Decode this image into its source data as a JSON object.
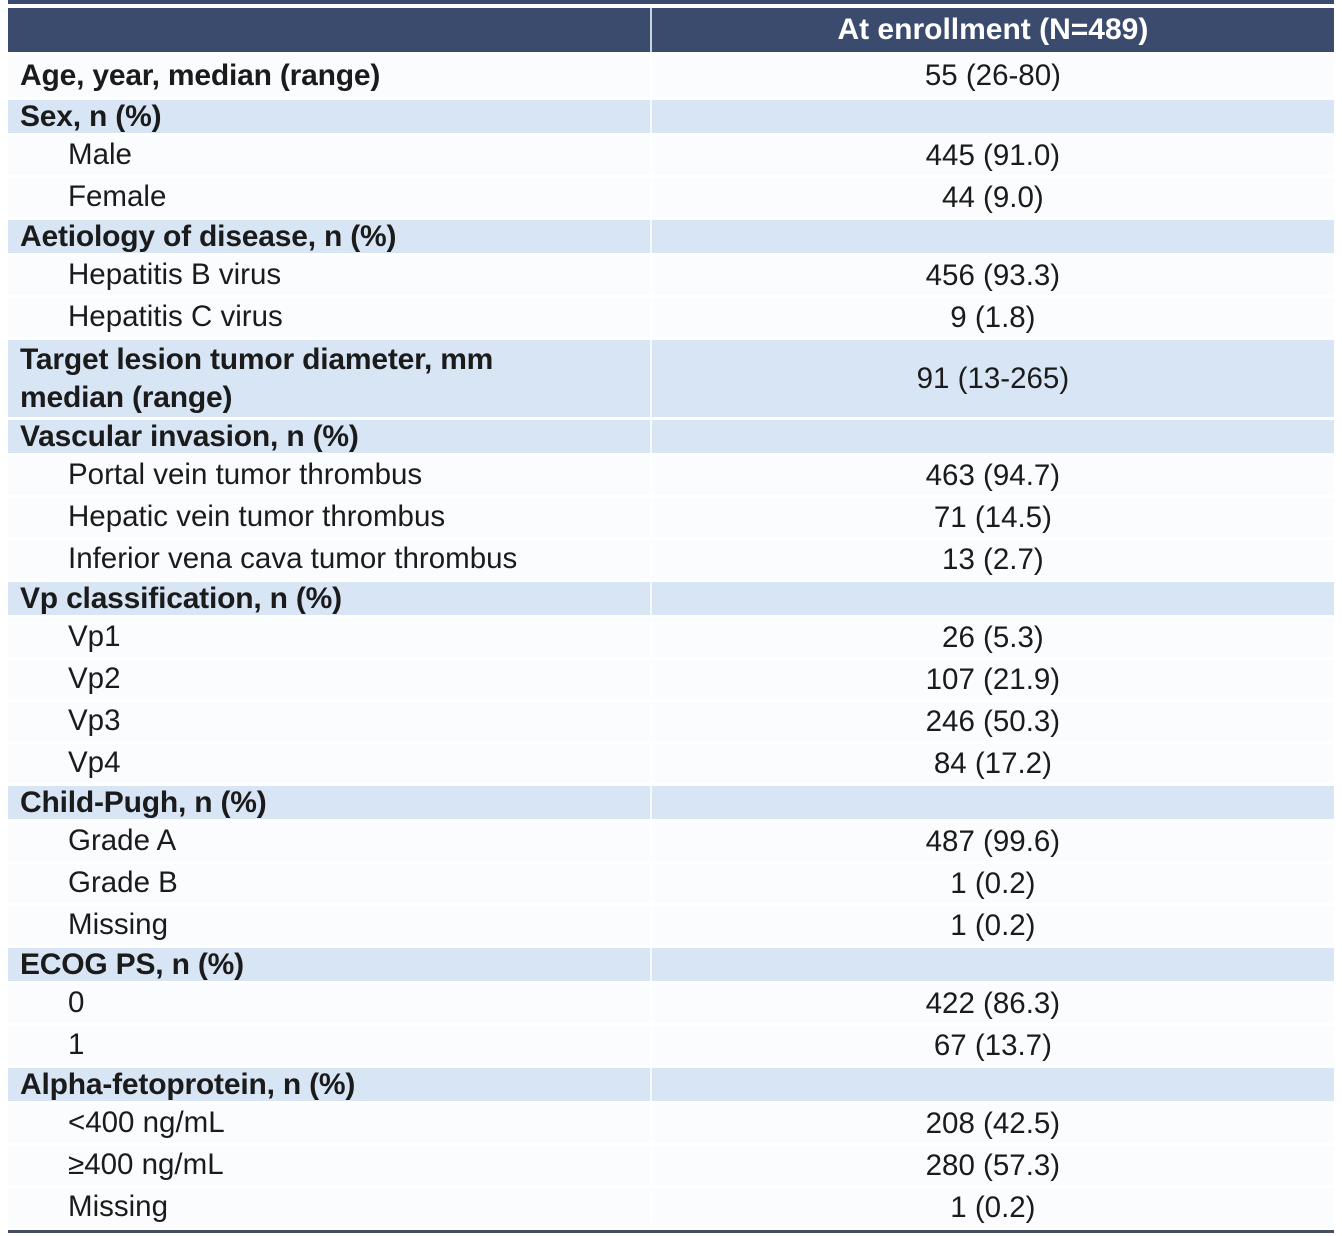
{
  "colors": {
    "header_bg": "#3b4b6d",
    "header_text": "#ffffff",
    "section_bg": "#d7e5f5",
    "row_bg": "#fbfcfe",
    "text": "#1b1b1b",
    "top_rule": "#3b4b6d",
    "bottom_rule": "#455062"
  },
  "table": {
    "columns": [
      {
        "label": ""
      },
      {
        "label": "At enrollment (N=489)"
      }
    ],
    "rows": [
      {
        "style": "intro",
        "label": "Age, year, median (range)",
        "value": "55 (26-80)"
      },
      {
        "style": "section",
        "label": "Sex, n (%)",
        "value": ""
      },
      {
        "style": "item",
        "label": "Male",
        "value": "445 (91.0)"
      },
      {
        "style": "item",
        "label": "Female",
        "value": "44 (9.0)"
      },
      {
        "style": "section",
        "label": "Aetiology of disease, n (%)",
        "value": ""
      },
      {
        "style": "item",
        "label": "Hepatitis B virus",
        "value": "456 (93.3)"
      },
      {
        "style": "item",
        "label": "Hepatitis C virus",
        "value": "9 (1.8)"
      },
      {
        "style": "section",
        "label": "Target lesion tumor diameter, mm\nmedian (range)",
        "value": "91 (13-265)",
        "tall": true
      },
      {
        "style": "section",
        "label": "Vascular invasion, n (%)",
        "value": ""
      },
      {
        "style": "item",
        "label": "Portal vein tumor thrombus",
        "value": "463 (94.7)"
      },
      {
        "style": "item",
        "label": "Hepatic vein tumor thrombus",
        "value": "71 (14.5)"
      },
      {
        "style": "item",
        "label": "Inferior vena cava tumor thrombus",
        "value": "13 (2.7)"
      },
      {
        "style": "section",
        "label": "Vp classification, n (%)",
        "value": ""
      },
      {
        "style": "item",
        "label": "Vp1",
        "value": "26 (5.3)"
      },
      {
        "style": "item",
        "label": "Vp2",
        "value": "107 (21.9)"
      },
      {
        "style": "item",
        "label": "Vp3",
        "value": "246 (50.3)"
      },
      {
        "style": "item",
        "label": "Vp4",
        "value": "84 (17.2)"
      },
      {
        "style": "section",
        "label": "Child-Pugh, n (%)",
        "value": ""
      },
      {
        "style": "item",
        "label": "Grade A",
        "value": "487 (99.6)"
      },
      {
        "style": "item",
        "label": "Grade B",
        "value": "1 (0.2)"
      },
      {
        "style": "item",
        "label": "Missing",
        "value": "1 (0.2)"
      },
      {
        "style": "section",
        "label": "ECOG PS, n (%)",
        "value": ""
      },
      {
        "style": "item",
        "label": "0",
        "value": "422 (86.3)"
      },
      {
        "style": "item",
        "label": "1",
        "value": "67 (13.7)"
      },
      {
        "style": "section",
        "label": "Alpha-fetoprotein, n (%)",
        "value": ""
      },
      {
        "style": "item",
        "label": "<400 ng/mL",
        "value": "208 (42.5)"
      },
      {
        "style": "item",
        "label": "≥400 ng/mL",
        "value": "280 (57.3)"
      },
      {
        "style": "item",
        "label": "Missing",
        "value": "1 (0.2)"
      }
    ]
  }
}
